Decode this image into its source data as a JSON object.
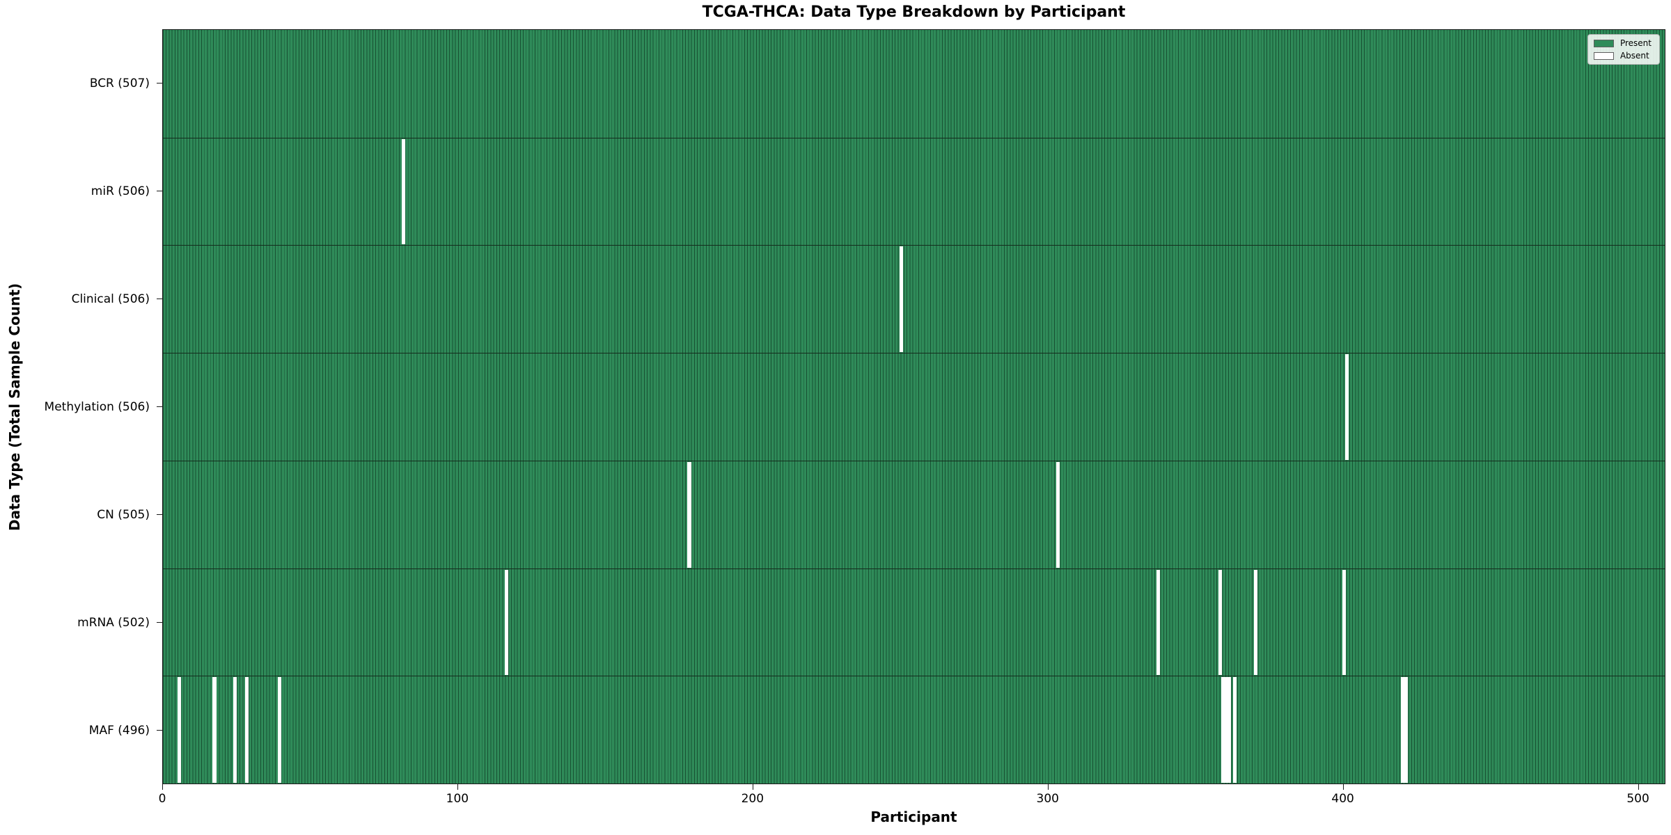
{
  "chart_data": {
    "type": "heatmap",
    "title": "TCGA-THCA: Data Type Breakdown by Participant",
    "xlabel": "Participant",
    "ylabel": "Data Type (Total Sample Count)",
    "total_participants": 507,
    "x_ticks": [
      0,
      100,
      200,
      300,
      400,
      500
    ],
    "x_range": [
      0,
      507
    ],
    "grid": false,
    "legend_position": "upper right",
    "legend": [
      {
        "label": "Present",
        "color": "#2f8b59"
      },
      {
        "label": "Absent",
        "color": "#ffffff"
      }
    ],
    "rows": [
      {
        "label": "BCR (507)",
        "data_type": "BCR",
        "present_count": 507,
        "absent_participants": []
      },
      {
        "label": "miR (506)",
        "data_type": "miR",
        "present_count": 506,
        "absent_participants": [
          81
        ]
      },
      {
        "label": "Clinical (506)",
        "data_type": "Clinical",
        "present_count": 506,
        "absent_participants": [
          250
        ]
      },
      {
        "label": "Methylation (506)",
        "data_type": "Methylation",
        "present_count": 506,
        "absent_participants": [
          401
        ]
      },
      {
        "label": "CN (505)",
        "data_type": "CN",
        "present_count": 505,
        "absent_participants": [
          178,
          303
        ]
      },
      {
        "label": "mRNA (502)",
        "data_type": "mRNA",
        "present_count": 502,
        "absent_participants": [
          116,
          337,
          358,
          370,
          400
        ]
      },
      {
        "label": "MAF (496)",
        "data_type": "MAF",
        "present_count": 496,
        "absent_participants": [
          5,
          17,
          24,
          28,
          39,
          359,
          360,
          361,
          363,
          420,
          421
        ]
      }
    ],
    "colors": {
      "present": "#2f8b59",
      "absent": "#ffffff",
      "bar_edge": "#14361f",
      "spine": "#1a1a1a",
      "text": "#000000"
    }
  }
}
